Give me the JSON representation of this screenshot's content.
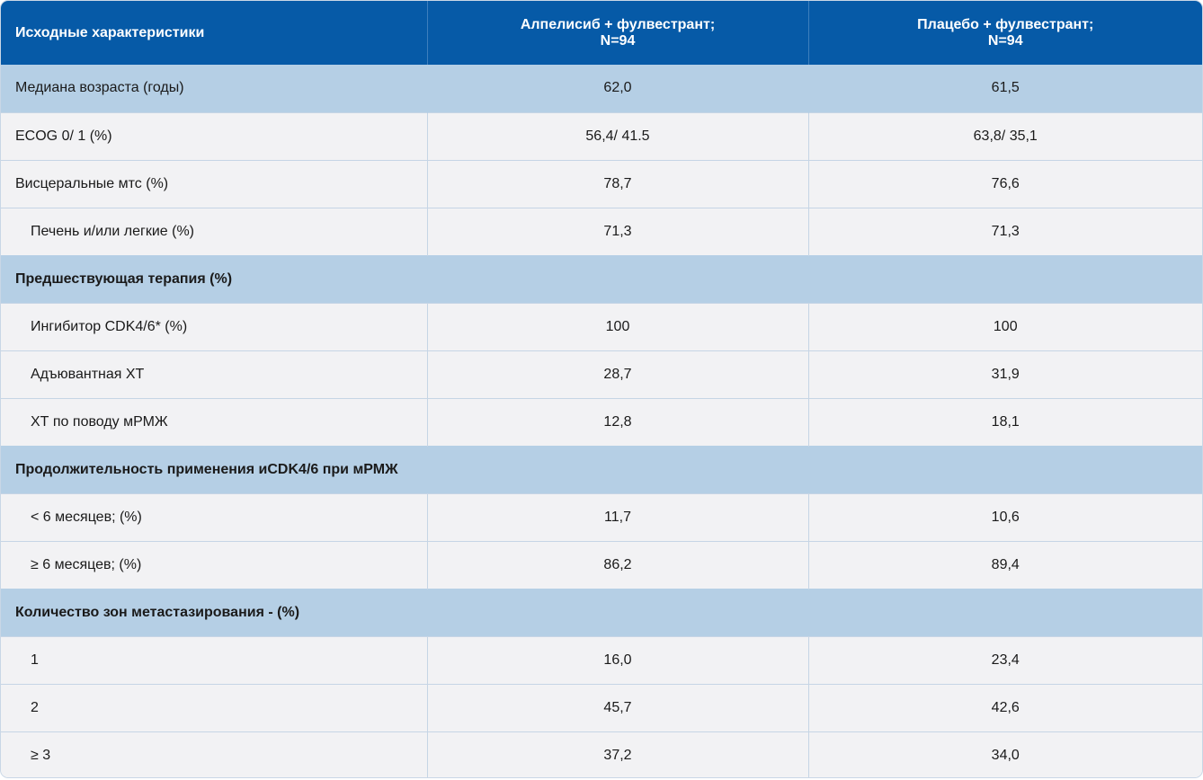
{
  "header": {
    "col1": "Исходные характеристики",
    "col2_line1": "Алпелисиб + фулвестрант;",
    "col2_line2": "N=94",
    "col3_line1": "Плацебо + фулвестрант;",
    "col3_line2": "N=94"
  },
  "rows": [
    {
      "label": "Медиана возраста (годы)",
      "a": "62,0",
      "b": "61,5"
    },
    {
      "label": "ECOG 0/ 1 (%)",
      "a": "56,4/ 41.5",
      "b": "63,8/ 35,1"
    },
    {
      "label": "Висцеральные мтс (%)",
      "a": "78,7",
      "b": "76,6"
    },
    {
      "label": "Печень и/или легкие (%)",
      "a": "71,3",
      "b": "71,3"
    },
    {
      "section": "Предшествующая терапия (%)"
    },
    {
      "label": "Ингибитор CDK4/6* (%)",
      "a": "100",
      "b": "100"
    },
    {
      "label": "Адъювантная ХТ",
      "a": "28,7",
      "b": "31,9"
    },
    {
      "label": "ХТ по поводу мРМЖ",
      "a": "12,8",
      "b": "18,1"
    },
    {
      "section": "Продолжительность применения иCDK4/6 при мРМЖ"
    },
    {
      "label": "< 6 месяцев; (%)",
      "a": "11,7",
      "b": "10,6"
    },
    {
      "label": "≥ 6 месяцев; (%)",
      "a": "86,2",
      "b": "89,4"
    },
    {
      "section": "Количество зон метастазирования - (%)"
    },
    {
      "label": "1",
      "a": "16,0",
      "b": "23,4"
    },
    {
      "label": "2",
      "a": "45,7",
      "b": "42,6"
    },
    {
      "label": "≥ 3",
      "a": "37,2",
      "b": "34,0"
    }
  ],
  "colors": {
    "header_bg": "#065aa7",
    "highlight_row_bg": "#b5cfe5",
    "row_bg": "#f2f2f4"
  }
}
